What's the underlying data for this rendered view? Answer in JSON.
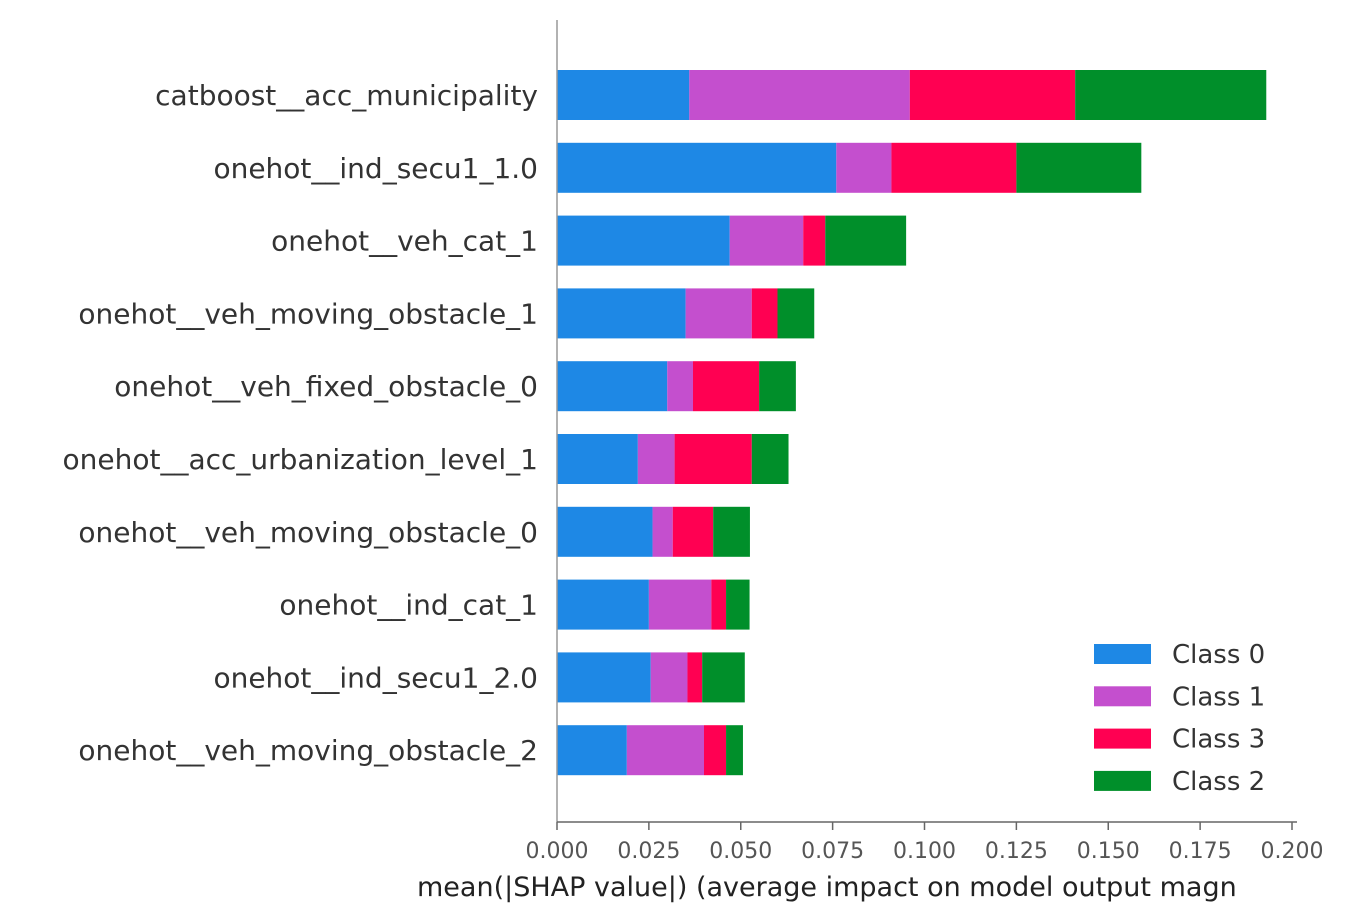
{
  "chart_data": {
    "type": "bar",
    "orientation": "horizontal",
    "stacked": true,
    "categories": [
      "catboost__acc_municipality",
      "onehot__ind_secu1_1.0",
      "onehot__veh_cat_1",
      "onehot__veh_moving_obstacle_1",
      "onehot__veh_fixed_obstacle_0",
      "onehot__acc_urbanization_level_1",
      "onehot__veh_moving_obstacle_0",
      "onehot__ind_cat_1",
      "onehot__ind_secu1_2.0",
      "onehot__veh_moving_obstacle_2"
    ],
    "series": [
      {
        "name": "Class 0",
        "color": "#1e88e5",
        "values": [
          0.036,
          0.076,
          0.047,
          0.035,
          0.03,
          0.022,
          0.026,
          0.025,
          0.0255,
          0.019
        ]
      },
      {
        "name": "Class 1",
        "color": "#c44fce",
        "values": [
          0.06,
          0.015,
          0.02,
          0.018,
          0.007,
          0.01,
          0.0055,
          0.017,
          0.01,
          0.021
        ]
      },
      {
        "name": "Class 3",
        "color": "#ff0052",
        "values": [
          0.045,
          0.034,
          0.006,
          0.007,
          0.018,
          0.021,
          0.011,
          0.004,
          0.004,
          0.006
        ]
      },
      {
        "name": "Class 2",
        "color": "#008f2a",
        "values": [
          0.052,
          0.034,
          0.022,
          0.01,
          0.01,
          0.01,
          0.01,
          0.0064,
          0.0116,
          0.0046
        ]
      }
    ],
    "xlabel": "mean(|SHAP value|) (average impact on model output magn",
    "ylabel": "",
    "xlim": [
      0,
      0.2
    ],
    "xticks": [
      "0.000",
      "0.025",
      "0.050",
      "0.075",
      "0.100",
      "0.125",
      "0.150",
      "0.175",
      "0.200"
    ],
    "grid": false,
    "legend_position": "bottom-right"
  }
}
